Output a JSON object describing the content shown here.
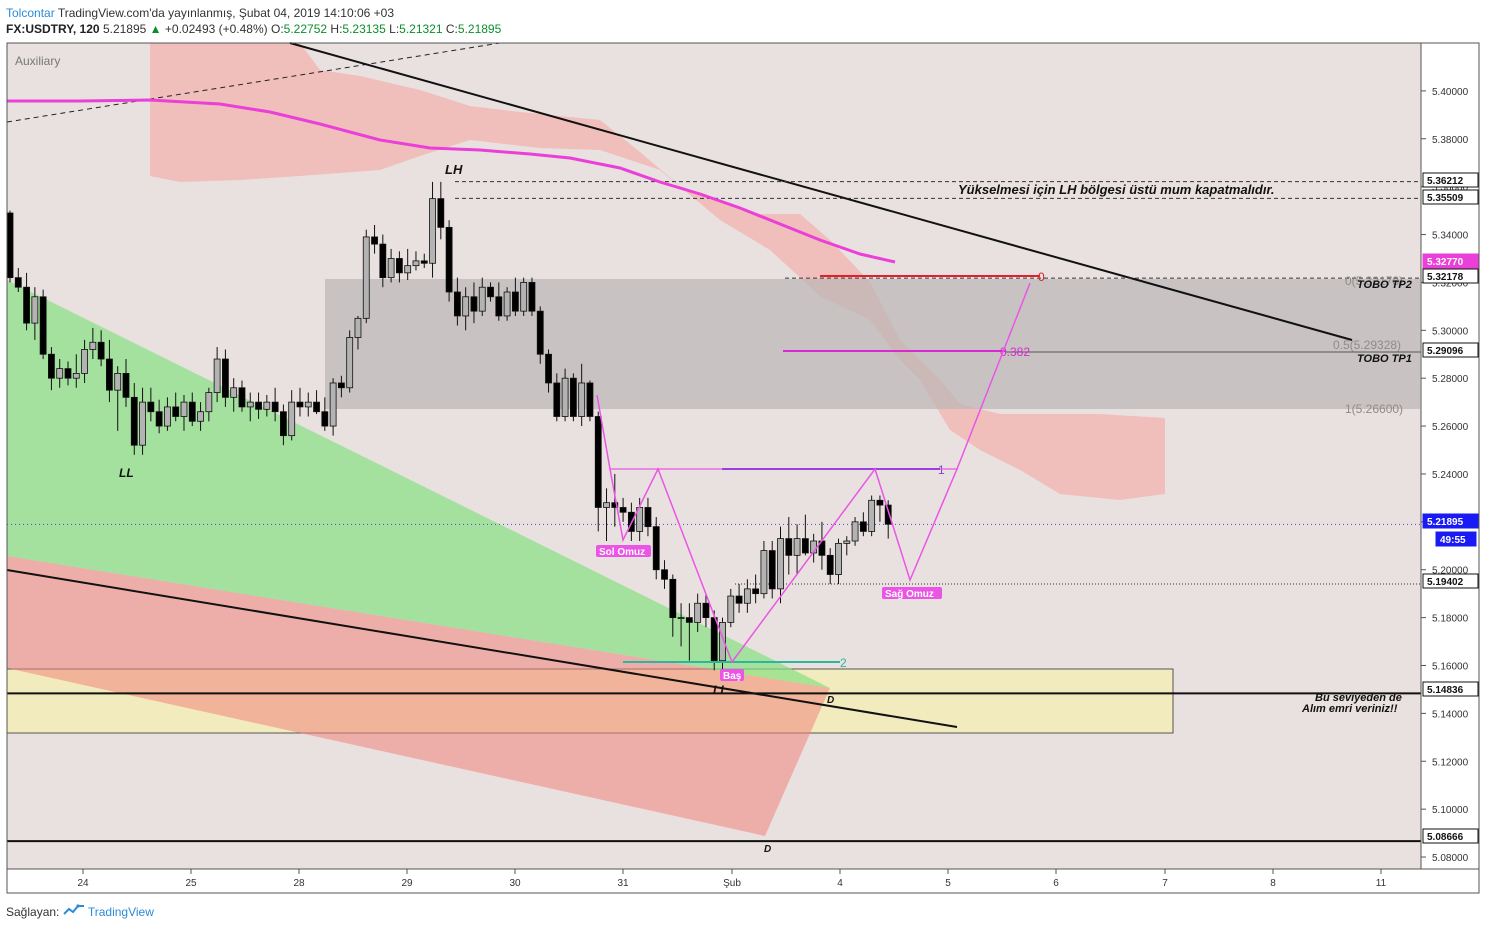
{
  "header": {
    "author": "Tolcontar",
    "published_text": "TradingView.com'da yayınlanmış, Şubat 04, 2019 14:10:06 +03",
    "symbol": "FX:USDTRY, 120",
    "last": "5.21895",
    "arrow": "▲",
    "change": "+0.02493 (+0.48%)",
    "ohlc": {
      "o_label": "O:",
      "o": "5.22752",
      "h_label": "H:",
      "h": "5.23135",
      "l_label": "L:",
      "l": "5.21321",
      "c_label": "C:",
      "c": "5.21895"
    }
  },
  "auxiliary_label": "Auxiliary",
  "footer": {
    "text": "Sağlayan:",
    "brand": "TradingView",
    "logo_icon": "tradingview-logo-icon"
  },
  "colors": {
    "up_candle": "#b3b3b3",
    "down_candle": "#000000",
    "background": "#e9e1df",
    "cloud": "#f1b8b6",
    "ma": "#ea3fd8",
    "zone_gray": "#b9b6b5",
    "zone_yellow": "#f2ebbd",
    "green_fan": "#86e082",
    "red_fan": "#f0857d",
    "pattern": "#ea55e6",
    "price_tag": "#1a1af5"
  },
  "annotations": {
    "lh": "LH",
    "ll_left": "LL",
    "ll_bottom": "LL",
    "d1": "D",
    "d2": "D",
    "note_lh": "Yükselmesi için LH bölgesi üstü mum kapatmalıdır.",
    "tobo_tp2": "TOBO TP2",
    "tobo_tp1": "TOBO TP1",
    "sol_omuz": "Sol Omuz",
    "bas": "Baş",
    "sag_omuz": "Sağ Omuz",
    "buy_note_1": "Bu seviyeden de",
    "buy_note_2": "Alım emri veriniz!!",
    "fib_0": "0",
    "fib_0382": "0.382",
    "fib_1": "1",
    "fib_2": "2",
    "fib_0_label": "0(5.32178)",
    "fib_05_label": "0.5(5.29328)",
    "fib_1_label": "1(5.26600)"
  },
  "price_tags": [
    {
      "value": "5.36212",
      "style": "plain"
    },
    {
      "value": "5.35509",
      "style": "plain"
    },
    {
      "value": "5.32770",
      "style": "magenta"
    },
    {
      "value": "5.32178",
      "style": "plain"
    },
    {
      "value": "5.29096",
      "style": "plain"
    },
    {
      "value": "5.21895",
      "style": "blue"
    },
    {
      "value": "49:55",
      "style": "blue"
    },
    {
      "value": "5.19402",
      "style": "plain"
    },
    {
      "value": "5.14836",
      "style": "plain"
    },
    {
      "value": "5.08666",
      "style": "plain"
    }
  ],
  "chart_data": {
    "type": "candlestick",
    "symbol": "FX:USDTRY",
    "interval": "120",
    "y_ticks": [
      "5.40000",
      "5.38000",
      "5.36000",
      "5.34000",
      "5.32000",
      "5.30000",
      "5.28000",
      "5.26000",
      "5.24000",
      "5.22000",
      "5.20000",
      "5.18000",
      "5.16000",
      "5.14000",
      "5.12000",
      "5.10000",
      "5.08000"
    ],
    "x_ticks": [
      "24",
      "25",
      "28",
      "29",
      "30",
      "31",
      "Şub",
      "4",
      "5",
      "6",
      "7",
      "8",
      "11"
    ],
    "ylim": [
      5.075,
      5.42
    ],
    "horizontal_levels": [
      5.36212,
      5.35509,
      5.32178,
      5.29096,
      5.21895,
      5.19402,
      5.14836,
      5.08666
    ],
    "candles": [
      {
        "o": 5.349,
        "h": 5.35,
        "l": 5.32,
        "c": 5.322
      },
      {
        "o": 5.322,
        "h": 5.326,
        "l": 5.316,
        "c": 5.318
      },
      {
        "o": 5.318,
        "h": 5.324,
        "l": 5.3,
        "c": 5.303
      },
      {
        "o": 5.303,
        "h": 5.318,
        "l": 5.296,
        "c": 5.314
      },
      {
        "o": 5.314,
        "h": 5.317,
        "l": 5.288,
        "c": 5.29
      },
      {
        "o": 5.29,
        "h": 5.293,
        "l": 5.275,
        "c": 5.28
      },
      {
        "o": 5.28,
        "h": 5.288,
        "l": 5.276,
        "c": 5.284
      },
      {
        "o": 5.284,
        "h": 5.287,
        "l": 5.277,
        "c": 5.28
      },
      {
        "o": 5.28,
        "h": 5.29,
        "l": 5.276,
        "c": 5.282
      },
      {
        "o": 5.282,
        "h": 5.296,
        "l": 5.278,
        "c": 5.292
      },
      {
        "o": 5.292,
        "h": 5.301,
        "l": 5.288,
        "c": 5.295
      },
      {
        "o": 5.295,
        "h": 5.3,
        "l": 5.285,
        "c": 5.288
      },
      {
        "o": 5.288,
        "h": 5.296,
        "l": 5.27,
        "c": 5.275
      },
      {
        "o": 5.275,
        "h": 5.285,
        "l": 5.258,
        "c": 5.282
      },
      {
        "o": 5.282,
        "h": 5.288,
        "l": 5.268,
        "c": 5.272
      },
      {
        "o": 5.272,
        "h": 5.278,
        "l": 5.248,
        "c": 5.252
      },
      {
        "o": 5.252,
        "h": 5.276,
        "l": 5.248,
        "c": 5.27
      },
      {
        "o": 5.27,
        "h": 5.276,
        "l": 5.262,
        "c": 5.266
      },
      {
        "o": 5.266,
        "h": 5.271,
        "l": 5.257,
        "c": 5.26
      },
      {
        "o": 5.26,
        "h": 5.272,
        "l": 5.258,
        "c": 5.268
      },
      {
        "o": 5.268,
        "h": 5.274,
        "l": 5.262,
        "c": 5.264
      },
      {
        "o": 5.264,
        "h": 5.273,
        "l": 5.258,
        "c": 5.27
      },
      {
        "o": 5.27,
        "h": 5.274,
        "l": 5.26,
        "c": 5.262
      },
      {
        "o": 5.262,
        "h": 5.27,
        "l": 5.258,
        "c": 5.266
      },
      {
        "o": 5.266,
        "h": 5.276,
        "l": 5.262,
        "c": 5.274
      },
      {
        "o": 5.274,
        "h": 5.293,
        "l": 5.27,
        "c": 5.288
      },
      {
        "o": 5.288,
        "h": 5.292,
        "l": 5.268,
        "c": 5.272
      },
      {
        "o": 5.272,
        "h": 5.28,
        "l": 5.266,
        "c": 5.276
      },
      {
        "o": 5.276,
        "h": 5.279,
        "l": 5.266,
        "c": 5.268
      },
      {
        "o": 5.268,
        "h": 5.274,
        "l": 5.262,
        "c": 5.27
      },
      {
        "o": 5.27,
        "h": 5.274,
        "l": 5.263,
        "c": 5.267
      },
      {
        "o": 5.267,
        "h": 5.273,
        "l": 5.264,
        "c": 5.27
      },
      {
        "o": 5.27,
        "h": 5.276,
        "l": 5.262,
        "c": 5.266
      },
      {
        "o": 5.266,
        "h": 5.269,
        "l": 5.252,
        "c": 5.256
      },
      {
        "o": 5.256,
        "h": 5.275,
        "l": 5.254,
        "c": 5.27
      },
      {
        "o": 5.27,
        "h": 5.276,
        "l": 5.264,
        "c": 5.268
      },
      {
        "o": 5.268,
        "h": 5.274,
        "l": 5.264,
        "c": 5.27
      },
      {
        "o": 5.27,
        "h": 5.275,
        "l": 5.265,
        "c": 5.266
      },
      {
        "o": 5.266,
        "h": 5.272,
        "l": 5.258,
        "c": 5.26
      },
      {
        "o": 5.26,
        "h": 5.28,
        "l": 5.256,
        "c": 5.278
      },
      {
        "o": 5.278,
        "h": 5.281,
        "l": 5.272,
        "c": 5.276
      },
      {
        "o": 5.276,
        "h": 5.3,
        "l": 5.274,
        "c": 5.297
      },
      {
        "o": 5.297,
        "h": 5.306,
        "l": 5.292,
        "c": 5.305
      },
      {
        "o": 5.305,
        "h": 5.342,
        "l": 5.303,
        "c": 5.339
      },
      {
        "o": 5.339,
        "h": 5.344,
        "l": 5.332,
        "c": 5.336
      },
      {
        "o": 5.336,
        "h": 5.34,
        "l": 5.318,
        "c": 5.322
      },
      {
        "o": 5.322,
        "h": 5.334,
        "l": 5.32,
        "c": 5.33
      },
      {
        "o": 5.33,
        "h": 5.333,
        "l": 5.32,
        "c": 5.324
      },
      {
        "o": 5.324,
        "h": 5.334,
        "l": 5.321,
        "c": 5.327
      },
      {
        "o": 5.327,
        "h": 5.333,
        "l": 5.325,
        "c": 5.329
      },
      {
        "o": 5.329,
        "h": 5.332,
        "l": 5.326,
        "c": 5.328
      },
      {
        "o": 5.328,
        "h": 5.362,
        "l": 5.322,
        "c": 5.355
      },
      {
        "o": 5.355,
        "h": 5.362,
        "l": 5.338,
        "c": 5.343
      },
      {
        "o": 5.343,
        "h": 5.346,
        "l": 5.312,
        "c": 5.316
      },
      {
        "o": 5.316,
        "h": 5.322,
        "l": 5.302,
        "c": 5.306
      },
      {
        "o": 5.306,
        "h": 5.318,
        "l": 5.3,
        "c": 5.314
      },
      {
        "o": 5.314,
        "h": 5.32,
        "l": 5.303,
        "c": 5.308
      },
      {
        "o": 5.308,
        "h": 5.322,
        "l": 5.306,
        "c": 5.318
      },
      {
        "o": 5.318,
        "h": 5.32,
        "l": 5.312,
        "c": 5.314
      },
      {
        "o": 5.314,
        "h": 5.32,
        "l": 5.304,
        "c": 5.306
      },
      {
        "o": 5.306,
        "h": 5.318,
        "l": 5.304,
        "c": 5.316
      },
      {
        "o": 5.316,
        "h": 5.322,
        "l": 5.306,
        "c": 5.308
      },
      {
        "o": 5.308,
        "h": 5.322,
        "l": 5.306,
        "c": 5.32
      },
      {
        "o": 5.32,
        "h": 5.322,
        "l": 5.306,
        "c": 5.308
      },
      {
        "o": 5.308,
        "h": 5.31,
        "l": 5.286,
        "c": 5.29
      },
      {
        "o": 5.29,
        "h": 5.292,
        "l": 5.274,
        "c": 5.278
      },
      {
        "o": 5.278,
        "h": 5.282,
        "l": 5.262,
        "c": 5.264
      },
      {
        "o": 5.264,
        "h": 5.284,
        "l": 5.262,
        "c": 5.28
      },
      {
        "o": 5.28,
        "h": 5.282,
        "l": 5.262,
        "c": 5.264
      },
      {
        "o": 5.264,
        "h": 5.286,
        "l": 5.26,
        "c": 5.278
      },
      {
        "o": 5.278,
        "h": 5.279,
        "l": 5.262,
        "c": 5.264
      },
      {
        "o": 5.264,
        "h": 5.266,
        "l": 5.216,
        "c": 5.226
      },
      {
        "o": 5.226,
        "h": 5.234,
        "l": 5.212,
        "c": 5.228
      },
      {
        "o": 5.228,
        "h": 5.24,
        "l": 5.218,
        "c": 5.226
      },
      {
        "o": 5.226,
        "h": 5.23,
        "l": 5.22,
        "c": 5.224
      },
      {
        "o": 5.224,
        "h": 5.228,
        "l": 5.212,
        "c": 5.216
      },
      {
        "o": 5.216,
        "h": 5.23,
        "l": 5.212,
        "c": 5.226
      },
      {
        "o": 5.226,
        "h": 5.23,
        "l": 5.214,
        "c": 5.218
      },
      {
        "o": 5.218,
        "h": 5.222,
        "l": 5.196,
        "c": 5.2
      },
      {
        "o": 5.2,
        "h": 5.204,
        "l": 5.192,
        "c": 5.196
      },
      {
        "o": 5.196,
        "h": 5.198,
        "l": 5.172,
        "c": 5.18
      },
      {
        "o": 5.18,
        "h": 5.186,
        "l": 5.168,
        "c": 5.18
      },
      {
        "o": 5.18,
        "h": 5.186,
        "l": 5.162,
        "c": 5.178
      },
      {
        "o": 5.178,
        "h": 5.19,
        "l": 5.174,
        "c": 5.186
      },
      {
        "o": 5.186,
        "h": 5.19,
        "l": 5.176,
        "c": 5.18
      },
      {
        "o": 5.18,
        "h": 5.183,
        "l": 5.158,
        "c": 5.162
      },
      {
        "o": 5.162,
        "h": 5.18,
        "l": 5.158,
        "c": 5.178
      },
      {
        "o": 5.178,
        "h": 5.192,
        "l": 5.176,
        "c": 5.189
      },
      {
        "o": 5.189,
        "h": 5.194,
        "l": 5.182,
        "c": 5.186
      },
      {
        "o": 5.186,
        "h": 5.196,
        "l": 5.182,
        "c": 5.192
      },
      {
        "o": 5.192,
        "h": 5.198,
        "l": 5.186,
        "c": 5.19
      },
      {
        "o": 5.19,
        "h": 5.212,
        "l": 5.188,
        "c": 5.208
      },
      {
        "o": 5.208,
        "h": 5.212,
        "l": 5.188,
        "c": 5.192
      },
      {
        "o": 5.192,
        "h": 5.218,
        "l": 5.186,
        "c": 5.213
      },
      {
        "o": 5.213,
        "h": 5.222,
        "l": 5.198,
        "c": 5.206
      },
      {
        "o": 5.206,
        "h": 5.219,
        "l": 5.198,
        "c": 5.213
      },
      {
        "o": 5.213,
        "h": 5.223,
        "l": 5.206,
        "c": 5.207
      },
      {
        "o": 5.207,
        "h": 5.215,
        "l": 5.203,
        "c": 5.212
      },
      {
        "o": 5.212,
        "h": 5.22,
        "l": 5.2,
        "c": 5.206
      },
      {
        "o": 5.206,
        "h": 5.209,
        "l": 5.194,
        "c": 5.198
      },
      {
        "o": 5.198,
        "h": 5.213,
        "l": 5.194,
        "c": 5.211
      },
      {
        "o": 5.211,
        "h": 5.214,
        "l": 5.206,
        "c": 5.212
      },
      {
        "o": 5.212,
        "h": 5.222,
        "l": 5.21,
        "c": 5.22
      },
      {
        "o": 5.22,
        "h": 5.224,
        "l": 5.214,
        "c": 5.216
      },
      {
        "o": 5.216,
        "h": 5.231,
        "l": 5.214,
        "c": 5.229
      },
      {
        "o": 5.229,
        "h": 5.231,
        "l": 5.22,
        "c": 5.227
      },
      {
        "o": 5.227,
        "h": 5.229,
        "l": 5.213,
        "c": 5.219
      }
    ]
  }
}
